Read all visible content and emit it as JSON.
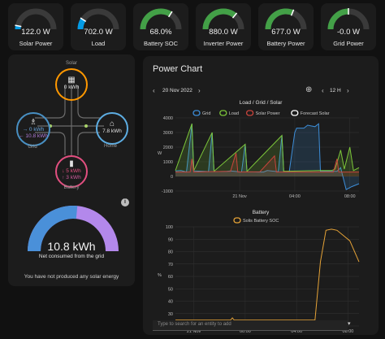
{
  "gauges": [
    {
      "value": "122.0 W",
      "label": "Solar Power",
      "color": "#039be5",
      "fraction": 0.06
    },
    {
      "value": "702.0 W",
      "label": "Load",
      "color": "#039be5",
      "fraction": 0.18
    },
    {
      "value": "68.0%",
      "label": "Battery SOC",
      "color": "#43a047",
      "fraction": 0.68
    },
    {
      "value": "880.0 W",
      "label": "Inverter Power",
      "color": "#43a047",
      "fraction": 0.72
    },
    {
      "value": "677.0 W",
      "label": "Battery Power",
      "color": "#43a047",
      "fraction": 0.62
    },
    {
      "value": "-0.0 W",
      "label": "Grid Power",
      "color": "#43a047",
      "fraction": 0.5
    }
  ],
  "energy_flow": {
    "solar": {
      "label": "Solar",
      "value": "0 kWh"
    },
    "grid": {
      "label": "Grid",
      "import": "→ 0 kWh",
      "export": "← 10.8 kWh"
    },
    "home": {
      "label": "Home",
      "value": "7.8 kWh"
    },
    "battery": {
      "label": "Battery",
      "in": "↓ 5 kWh",
      "out": "↑ 3 kWh"
    }
  },
  "consumption": {
    "value": "10.8 kWh",
    "label": "Net consumed from the grid",
    "note": "You have not produced any solar energy",
    "fraction": 0.53
  },
  "power_chart": {
    "title": "Power Chart",
    "date": "20 Nov 2022",
    "interval": "12 H",
    "search_placeholder": "Type to search for an entity to add"
  },
  "chart_data": [
    {
      "type": "line",
      "title": "Load / Grid / Solar",
      "ylabel": "W",
      "ylim": [
        -1000,
        4000
      ],
      "yticks": [
        "4000",
        "3000",
        "2000",
        "1000",
        "0",
        "-1000"
      ],
      "xticks": [
        "21 Nov",
        "04:00",
        "08:00"
      ],
      "series": [
        {
          "name": "Grid",
          "color": "#3d8ed9",
          "points": [
            [
              0,
              380
            ],
            [
              0.03,
              400
            ],
            [
              0.06,
              300
            ],
            [
              0.09,
              3600
            ],
            [
              0.1,
              380
            ],
            [
              0.18,
              330
            ],
            [
              0.2,
              3000
            ],
            [
              0.21,
              330
            ],
            [
              0.28,
              350
            ],
            [
              0.3,
              380
            ],
            [
              0.36,
              300
            ],
            [
              0.38,
              2200
            ],
            [
              0.39,
              320
            ],
            [
              0.45,
              300
            ],
            [
              0.48,
              300
            ],
            [
              0.5,
              400
            ],
            [
              0.56,
              320
            ],
            [
              0.58,
              2800
            ],
            [
              0.59,
              330
            ],
            [
              0.62,
              320
            ],
            [
              0.65,
              3000
            ],
            [
              0.66,
              3300
            ],
            [
              0.7,
              3300
            ],
            [
              0.72,
              3500
            ],
            [
              0.76,
              3400
            ],
            [
              0.78,
              3600
            ],
            [
              0.79,
              350
            ],
            [
              0.85,
              350
            ],
            [
              0.88,
              350
            ],
            [
              0.9,
              600
            ],
            [
              0.93,
              -900
            ],
            [
              0.96,
              -700
            ],
            [
              1,
              -500
            ]
          ]
        },
        {
          "name": "Load",
          "color": "#7cc63a",
          "points": [
            [
              0,
              400
            ],
            [
              0.09,
              3600
            ],
            [
              0.1,
              400
            ],
            [
              0.2,
              3000
            ],
            [
              0.21,
              350
            ],
            [
              0.38,
              2200
            ],
            [
              0.39,
              340
            ],
            [
              0.58,
              2800
            ],
            [
              0.59,
              350
            ],
            [
              0.79,
              400
            ],
            [
              0.85,
              400
            ],
            [
              0.87,
              500
            ],
            [
              0.9,
              1800
            ],
            [
              0.92,
              500
            ],
            [
              0.95,
              2000
            ],
            [
              0.97,
              400
            ],
            [
              1,
              600
            ]
          ]
        },
        {
          "name": "Solar Power",
          "color": "#c8443c",
          "points": [
            [
              0,
              300
            ],
            [
              0.08,
              300
            ],
            [
              0.09,
              1200
            ],
            [
              0.1,
              300
            ],
            [
              0.3,
              350
            ],
            [
              0.33,
              1600
            ],
            [
              0.34,
              300
            ],
            [
              0.46,
              320
            ],
            [
              0.54,
              1400
            ],
            [
              0.55,
              300
            ],
            [
              0.86,
              300
            ],
            [
              0.88,
              1200
            ],
            [
              0.89,
              300
            ],
            [
              1,
              300
            ]
          ]
        },
        {
          "name": "Forecast Solar",
          "color": "#ffffff",
          "points": []
        }
      ]
    },
    {
      "type": "line",
      "title": "Battery",
      "ylabel": "%",
      "ylim": [
        15,
        100
      ],
      "yticks": [
        "100",
        "90",
        "80",
        "70",
        "60",
        "50",
        "40",
        "30",
        "20"
      ],
      "xticks": [
        "21 Nov",
        "00:00",
        "04:00",
        "08:00"
      ],
      "series": [
        {
          "name": "Solis Battery SOC",
          "color": "#e6a337",
          "points": [
            [
              0,
              20
            ],
            [
              0.3,
              20
            ],
            [
              0.31,
              22
            ],
            [
              0.32,
              20
            ],
            [
              0.76,
              20
            ],
            [
              0.79,
              70
            ],
            [
              0.82,
              97
            ],
            [
              0.85,
              98
            ],
            [
              0.88,
              97
            ],
            [
              0.95,
              88
            ],
            [
              1,
              70
            ]
          ]
        }
      ]
    }
  ]
}
